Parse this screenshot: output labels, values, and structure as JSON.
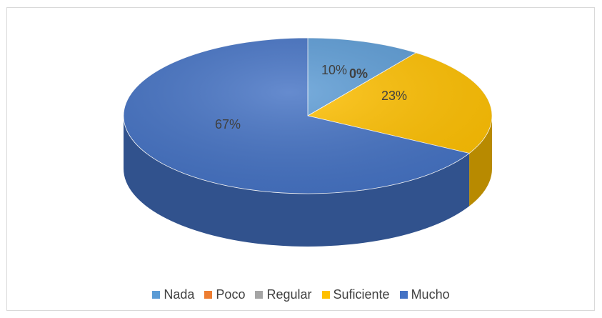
{
  "chart_data": {
    "type": "pie",
    "title": "",
    "categories": [
      "Nada",
      "Poco",
      "Regular",
      "Suficiente",
      "Mucho"
    ],
    "values": [
      10,
      0,
      0,
      23,
      67
    ],
    "labels": [
      "10%",
      "0%",
      "",
      "23%",
      "67%"
    ],
    "colors": [
      "#5b9bd5",
      "#ed7d31",
      "#a5a5a5",
      "#ffc000",
      "#4472c4"
    ],
    "legend_placement": "bottom",
    "style": "3d"
  }
}
